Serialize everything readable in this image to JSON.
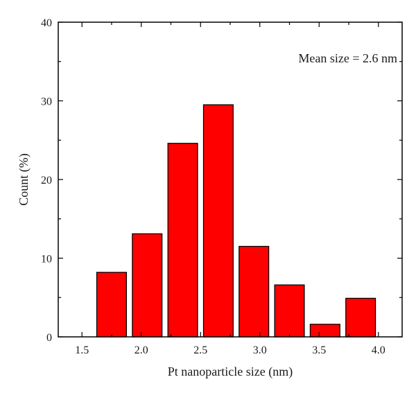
{
  "chart_data": {
    "type": "bar",
    "title": "",
    "xlabel": "Pt nanoparticle size (nm)",
    "ylabel": "Count (%)",
    "annotation": "Mean size = 2.6 nm",
    "xlim": [
      1.3,
      4.2
    ],
    "ylim": [
      0,
      40
    ],
    "xticks": [
      "1.5",
      "2.0",
      "2.5",
      "3.0",
      "3.5",
      "4.0"
    ],
    "yticks": [
      "0",
      "10",
      "20",
      "30",
      "40"
    ],
    "bar_width": 0.25,
    "bars": [
      {
        "x": 1.75,
        "value": 8.2
      },
      {
        "x": 2.05,
        "value": 13.1
      },
      {
        "x": 2.35,
        "value": 24.6
      },
      {
        "x": 2.65,
        "value": 29.5
      },
      {
        "x": 2.95,
        "value": 11.5
      },
      {
        "x": 3.25,
        "value": 6.6
      },
      {
        "x": 3.55,
        "value": 1.6
      },
      {
        "x": 3.85,
        "value": 4.9
      }
    ],
    "bar_color": "#ff0000",
    "bar_edge_color": "#000000",
    "grid": false,
    "legend": "none"
  }
}
